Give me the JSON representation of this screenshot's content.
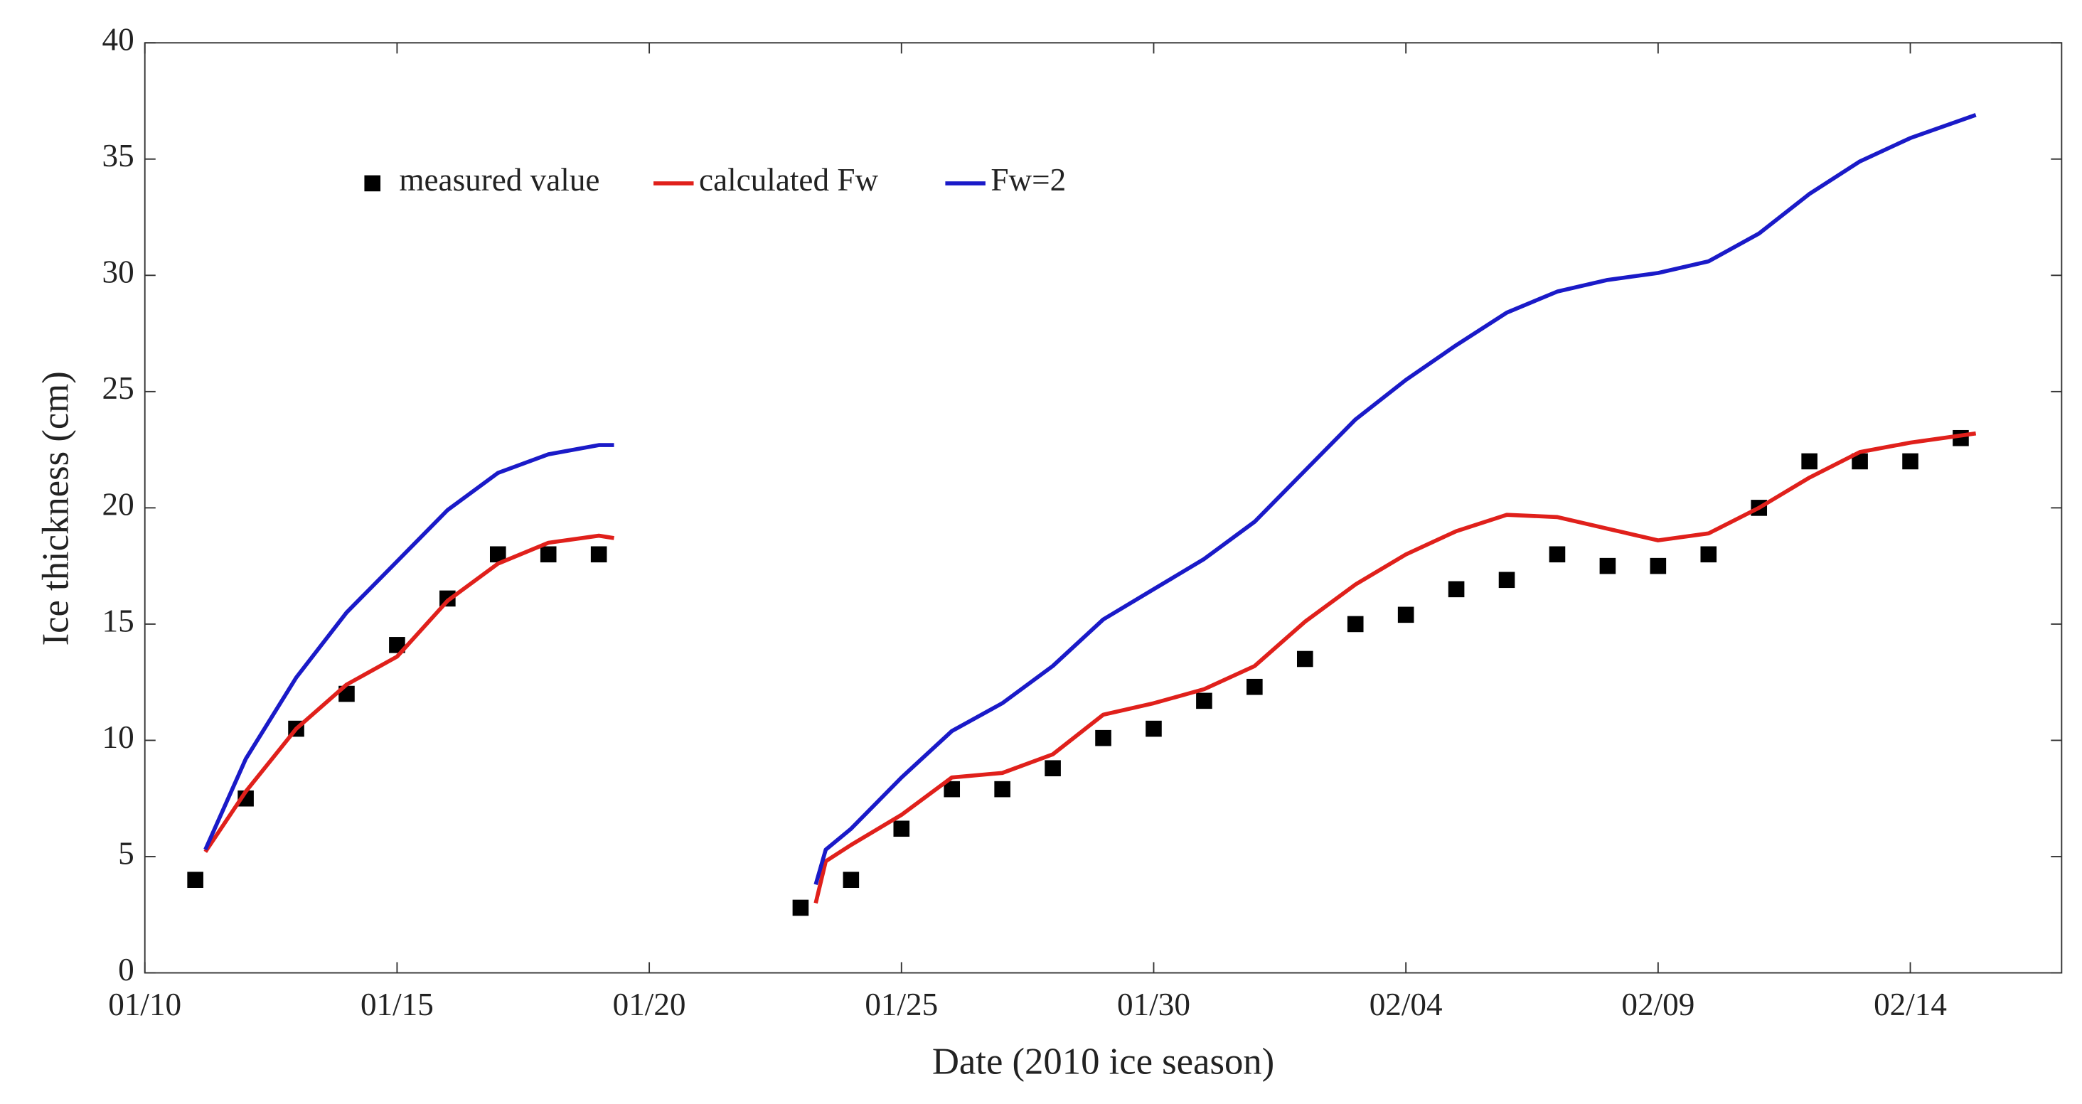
{
  "chart_data": {
    "type": "line",
    "xlabel": "Date (2010 ice season)",
    "ylabel": "Ice thickness (cm)",
    "xlim": [
      10,
      48
    ],
    "xticks": [
      {
        "value": 10,
        "label": "01/10"
      },
      {
        "value": 15,
        "label": "01/15"
      },
      {
        "value": 20,
        "label": "01/20"
      },
      {
        "value": 25,
        "label": "01/25"
      },
      {
        "value": 30,
        "label": "01/30"
      },
      {
        "value": 35,
        "label": "02/04"
      },
      {
        "value": 40,
        "label": "02/09"
      },
      {
        "value": 45,
        "label": "02/14"
      }
    ],
    "ylim": [
      0,
      40
    ],
    "yticks": [
      0,
      5,
      10,
      15,
      20,
      25,
      30,
      35,
      40
    ],
    "grid": false,
    "legend": "upper left",
    "series": [
      {
        "name": "measured value",
        "color": "#000000",
        "mode": "markers",
        "x": [
          11,
          12,
          13,
          14,
          15,
          16,
          17,
          18,
          19,
          23,
          24,
          25,
          26,
          27,
          28,
          29,
          30,
          31,
          32,
          33,
          34,
          35,
          36,
          37,
          38,
          39,
          40,
          41,
          42,
          43,
          44,
          45,
          46
        ],
        "values": [
          4,
          7.5,
          10.5,
          12,
          14.1,
          16.1,
          18,
          18,
          18,
          2.8,
          4,
          6.2,
          7.9,
          7.9,
          8.8,
          10.1,
          10.5,
          11.7,
          12.3,
          13.5,
          15,
          15.4,
          16.5,
          16.9,
          18,
          17.5,
          17.5,
          18,
          20,
          22,
          22,
          22,
          23
        ]
      },
      {
        "name": "calculated Fw",
        "color": "#e0201b",
        "mode": "line",
        "x": [
          11.2,
          12,
          13,
          14,
          15,
          16,
          17,
          18,
          19,
          19.3,
          21,
          23.3,
          23.5,
          24,
          25,
          26,
          27,
          28,
          29,
          30,
          31,
          32,
          33,
          34,
          35,
          36,
          37,
          38,
          39,
          40,
          41,
          42,
          43,
          44,
          45,
          46.3
        ],
        "values": [
          5.2,
          7.8,
          10.5,
          12.4,
          13.6,
          16,
          17.6,
          18.5,
          18.8,
          18.7,
          null,
          3.0,
          4.8,
          5.5,
          6.8,
          8.4,
          8.6,
          9.4,
          11.1,
          11.6,
          12.2,
          13.2,
          15.1,
          16.7,
          18.0,
          19.0,
          19.7,
          19.6,
          19.1,
          18.6,
          18.9,
          20.0,
          21.3,
          22.4,
          22.8,
          23.2
        ]
      },
      {
        "name": "Fw=2",
        "color": "#1a1ac8",
        "mode": "line",
        "x": [
          11.2,
          12,
          13,
          14,
          15,
          16,
          17,
          18,
          19,
          19.3,
          21,
          23.3,
          23.5,
          24,
          25,
          26,
          27,
          28,
          29,
          30,
          31,
          32,
          33,
          34,
          35,
          36,
          37,
          38,
          39,
          40,
          41,
          42,
          43,
          44,
          45,
          46.3
        ],
        "values": [
          5.3,
          9.2,
          12.7,
          15.5,
          17.7,
          19.9,
          21.5,
          22.3,
          22.7,
          22.7,
          null,
          3.8,
          5.3,
          6.2,
          8.4,
          10.4,
          11.6,
          13.2,
          15.2,
          16.5,
          17.8,
          19.4,
          21.6,
          23.8,
          25.5,
          27.0,
          28.4,
          29.3,
          29.8,
          30.1,
          30.6,
          31.8,
          33.5,
          34.9,
          35.9,
          36.9
        ]
      }
    ]
  }
}
